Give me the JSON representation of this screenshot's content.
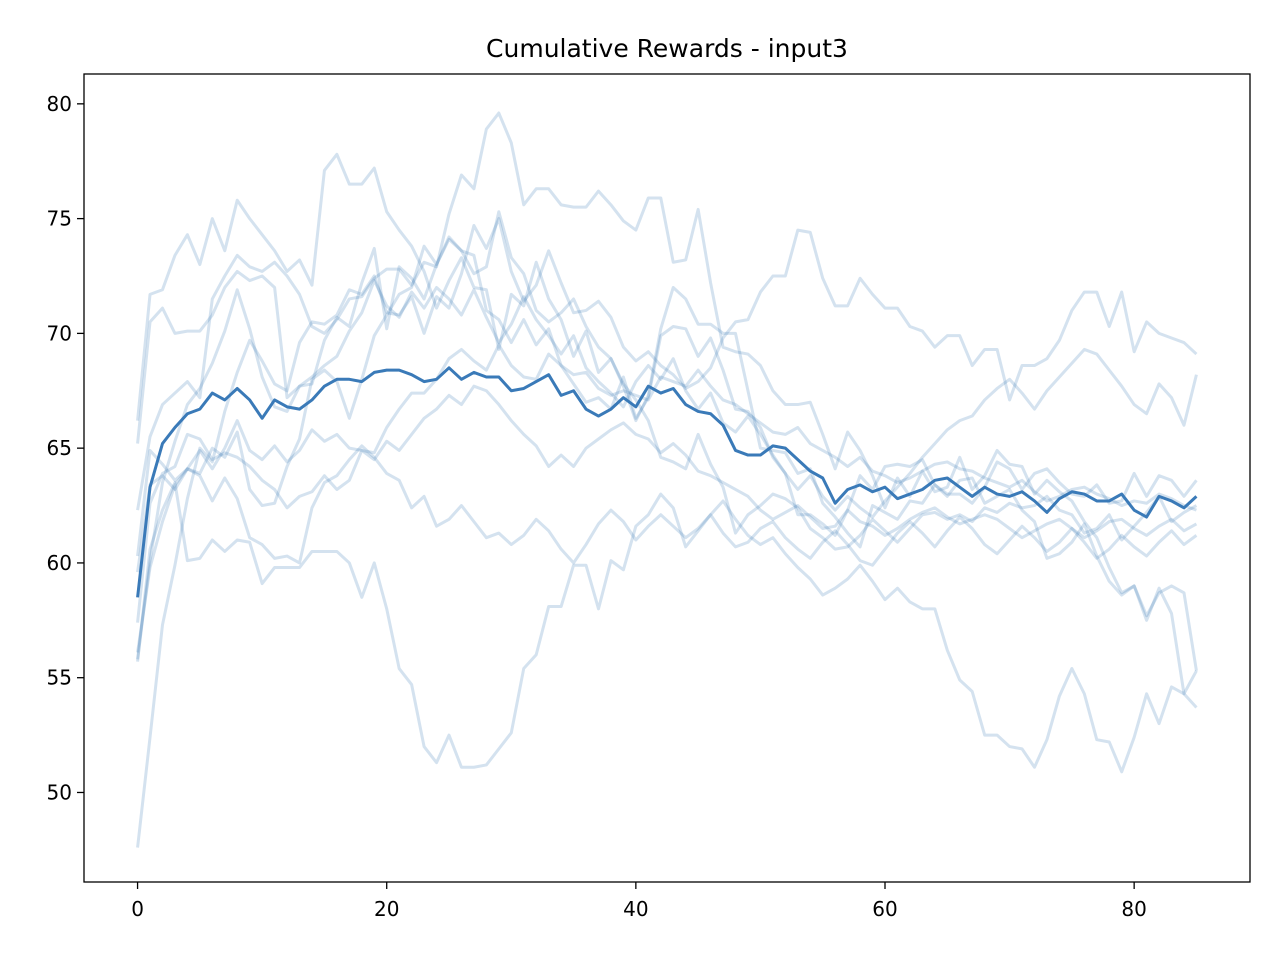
{
  "chart_data": {
    "type": "line",
    "title": "Cumulative Rewards - input3",
    "xlabel": "",
    "ylabel": "",
    "xlim": [
      -4.3,
      89.3
    ],
    "ylim": [
      46.1,
      81.3
    ],
    "xticks": [
      0,
      20,
      40,
      60,
      80
    ],
    "yticks": [
      50,
      55,
      60,
      65,
      70,
      75,
      80
    ],
    "grid": false,
    "legend": "none",
    "colors": {
      "mean": "#3a7ab8",
      "run": "#3a7ab8"
    },
    "run_opacity": 0.22,
    "mean": [
      58.5,
      63.3,
      65.2,
      65.9,
      66.5,
      66.7,
      67.4,
      67.1,
      67.6,
      67.1,
      66.3,
      67.1,
      66.8,
      66.7,
      67.1,
      67.7,
      68.0,
      68.0,
      67.9,
      68.3,
      68.4,
      68.4,
      68.2,
      67.9,
      68.0,
      68.5,
      68.0,
      68.3,
      68.1,
      68.1,
      67.5,
      67.6,
      67.9,
      68.2,
      67.3,
      67.5,
      66.7,
      66.4,
      66.7,
      67.2,
      66.8,
      67.7,
      67.4,
      67.6,
      66.9,
      66.6,
      66.5,
      66.0,
      64.9,
      64.7,
      64.7,
      65.1,
      65.0,
      64.5,
      64.0,
      63.7,
      62.6,
      63.2,
      63.4,
      63.1,
      63.3,
      62.8,
      63.0,
      63.2,
      63.6,
      63.7,
      63.3,
      62.9,
      63.3,
      63.0,
      62.9,
      63.1,
      62.7,
      62.2,
      62.8,
      63.1,
      63.0,
      62.7,
      62.7,
      63.0,
      62.3,
      62.0,
      62.9,
      62.7,
      62.4,
      62.9
    ],
    "series": [
      {
        "values": [
          66.2,
          71.7,
          71.9,
          73.4,
          74.3,
          73.0,
          75.0,
          73.6,
          75.8,
          75.0,
          74.3,
          73.6,
          72.7,
          73.2,
          72.1,
          77.1,
          77.8,
          76.5,
          76.5,
          77.2,
          75.3,
          74.5,
          73.8,
          72.7,
          71.1,
          72.3,
          73.3,
          72.0,
          71.9,
          69.3,
          71.7,
          71.2,
          73.1,
          71.5,
          70.6,
          69.0,
          70.1,
          68.3,
          68.9,
          67.7,
          66.2,
          67.3,
          70.2,
          72.0,
          71.5,
          70.4,
          70.4,
          70.0,
          70.0,
          67.5,
          65.0,
          64.9,
          64.8,
          63.9,
          64.1,
          62.6,
          62.0,
          61.3,
          60.7,
          62.5,
          62.2,
          61.9,
          62.7,
          62.6,
          63.4,
          62.9,
          63.6,
          63.7,
          62.6,
          62.9,
          63.2,
          62.3,
          61.8,
          60.2,
          60.4,
          60.9,
          61.7,
          60.3,
          59.2,
          58.6,
          59.0,
          57.5,
          58.9,
          57.8,
          54.3,
          53.7
        ]
      },
      {
        "values": [
          65.2,
          70.5,
          71.1,
          70.0,
          70.1,
          70.1,
          70.8,
          72.0,
          72.7,
          72.3,
          72.5,
          72.0,
          67.2,
          67.7,
          67.8,
          69.7,
          70.7,
          70.3,
          72.2,
          73.7,
          70.2,
          72.9,
          72.4,
          71.5,
          73.0,
          74.2,
          73.6,
          72.6,
          72.9,
          75.3,
          73.3,
          72.6,
          71.0,
          70.5,
          70.9,
          71.5,
          70.3,
          69.4,
          68.9,
          67.8,
          67.1,
          66.2,
          64.6,
          64.4,
          64.1,
          65.6,
          64.3,
          63.3,
          61.3,
          62.1,
          62.5,
          63.0,
          62.8,
          62.4,
          61.5,
          61.1,
          60.6,
          60.7,
          61.2,
          61.9,
          61.4,
          60.9,
          61.5,
          62.1,
          62.2,
          61.9,
          62.1,
          61.8,
          62.4,
          62.2,
          62.6,
          62.4,
          62.5,
          62.9,
          62.3,
          62.1,
          61.3,
          61.5,
          62.1,
          61.0,
          61.6,
          62.2,
          62.9,
          61.8,
          62.2,
          62.5
        ]
      },
      {
        "values": [
          62.3,
          65.5,
          66.9,
          67.4,
          67.9,
          67.2,
          71.5,
          72.5,
          73.4,
          72.9,
          72.7,
          73.1,
          72.5,
          71.7,
          70.3,
          70.0,
          70.6,
          71.5,
          71.6,
          72.4,
          72.8,
          72.8,
          72.1,
          73.1,
          72.9,
          75.2,
          76.9,
          76.3,
          78.9,
          79.6,
          78.3,
          75.6,
          76.3,
          76.3,
          75.6,
          75.5,
          75.5,
          76.2,
          75.6,
          74.9,
          74.5,
          75.9,
          75.9,
          73.1,
          73.2,
          75.4,
          72.2,
          69.4,
          69.2,
          69.1,
          68.6,
          67.5,
          66.9,
          66.9,
          67.0,
          65.6,
          64.1,
          65.7,
          64.9,
          63.8,
          62.4,
          63.7,
          62.9,
          64.0,
          63.1,
          63.3,
          64.6,
          63.2,
          63.8,
          64.9,
          64.3,
          64.2,
          63.0,
          63.6,
          63.1,
          62.7,
          61.8,
          61.1,
          59.8,
          58.7,
          59.0,
          57.7,
          58.7,
          59.0,
          58.7,
          55.3
        ]
      },
      {
        "values": [
          60.3,
          64.9,
          64.3,
          63.6,
          64.1,
          63.9,
          65.0,
          64.6,
          65.7,
          63.2,
          62.5,
          62.6,
          64.2,
          65.4,
          68.0,
          68.4,
          67.9,
          66.3,
          68.0,
          69.9,
          70.8,
          71.7,
          72.0,
          73.8,
          73.0,
          74.1,
          73.6,
          73.4,
          71.0,
          70.6,
          69.6,
          70.6,
          69.5,
          70.2,
          68.6,
          67.8,
          67.0,
          67.2,
          66.7,
          68.1,
          66.3,
          67.2,
          69.9,
          70.3,
          70.2,
          69.0,
          69.8,
          68.4,
          66.7,
          66.6,
          65.9,
          64.6,
          63.9,
          62.1,
          62.1,
          61.7,
          61.2,
          62.3,
          63.8,
          63.2,
          64.2,
          64.3,
          64.2,
          64.5,
          63.4,
          63.0,
          63.0,
          62.6,
          63.3,
          64.4,
          64.1,
          63.2,
          63.9,
          64.1,
          63.5,
          63.0,
          62.9,
          63.4,
          62.6,
          62.7,
          63.9,
          62.9,
          63.8,
          63.6,
          62.9,
          63.6
        ]
      },
      {
        "values": [
          59.6,
          63.4,
          63.8,
          63.2,
          64.1,
          64.9,
          64.1,
          65.0,
          66.2,
          64.9,
          64.5,
          65.1,
          64.4,
          64.9,
          65.8,
          65.3,
          65.6,
          65.0,
          64.9,
          64.8,
          65.9,
          66.7,
          67.4,
          67.4,
          68.0,
          68.9,
          69.3,
          68.8,
          68.4,
          69.5,
          68.6,
          68.1,
          68.0,
          69.1,
          68.6,
          68.2,
          68.3,
          67.6,
          67.3,
          67.5,
          67.3,
          67.1,
          68.1,
          67.9,
          67.7,
          68.4,
          67.7,
          67.1,
          66.9,
          66.5,
          66.1,
          65.7,
          65.6,
          65.9,
          65.2,
          64.9,
          64.6,
          64.2,
          64.6,
          64.0,
          63.8,
          63.5,
          63.7,
          64.0,
          64.3,
          64.4,
          64.1,
          64.0,
          63.7,
          63.5,
          63.3,
          63.6,
          63.1,
          62.7,
          62.9,
          63.2,
          63.3,
          63.0,
          62.8,
          62.5,
          62.7,
          62.6,
          63.0,
          62.8,
          62.5,
          62.3
        ]
      },
      {
        "values": [
          57.4,
          62.6,
          63.9,
          64.2,
          65.6,
          65.4,
          64.5,
          64.8,
          64.6,
          64.2,
          63.6,
          63.2,
          62.4,
          62.9,
          63.1,
          63.8,
          63.2,
          63.6,
          64.9,
          64.5,
          65.3,
          64.9,
          65.6,
          66.3,
          66.7,
          67.3,
          66.9,
          67.7,
          67.5,
          66.9,
          66.2,
          65.6,
          65.1,
          64.2,
          64.7,
          64.2,
          65.0,
          65.4,
          65.8,
          66.1,
          65.6,
          65.4,
          64.8,
          65.2,
          64.7,
          64.0,
          63.8,
          63.5,
          63.2,
          62.9,
          62.3,
          61.9,
          62.2,
          62.5,
          62.0,
          61.5,
          61.6,
          62.3,
          61.8,
          61.6,
          61.2,
          61.5,
          61.9,
          62.2,
          62.4,
          62.0,
          61.7,
          61.9,
          62.1,
          61.9,
          61.5,
          61.1,
          61.4,
          61.7,
          61.9,
          61.5,
          61.1,
          61.4,
          61.8,
          61.9,
          61.5,
          61.2,
          61.6,
          61.9,
          61.4,
          61.7
        ]
      },
      {
        "values": [
          56.1,
          59.8,
          61.8,
          63.4,
          64.1,
          63.8,
          62.7,
          63.7,
          62.8,
          61.1,
          60.8,
          60.2,
          60.3,
          60.0,
          62.4,
          63.5,
          63.8,
          64.5,
          65.1,
          64.6,
          63.9,
          63.6,
          62.4,
          62.9,
          61.6,
          61.9,
          62.5,
          61.8,
          61.1,
          61.3,
          60.8,
          61.2,
          61.9,
          61.4,
          60.6,
          60.0,
          60.8,
          61.7,
          62.3,
          61.8,
          61.0,
          61.6,
          62.1,
          61.6,
          61.1,
          61.5,
          62.1,
          61.3,
          60.7,
          60.9,
          61.5,
          61.8,
          61.1,
          60.6,
          60.2,
          60.9,
          61.4,
          60.8,
          60.1,
          59.9,
          60.6,
          61.3,
          61.8,
          61.3,
          60.7,
          61.4,
          62.0,
          61.5,
          60.8,
          60.4,
          61.0,
          61.6,
          61.1,
          60.5,
          60.9,
          61.5,
          60.9,
          60.2,
          60.6,
          61.2,
          60.7,
          60.3,
          60.9,
          61.4,
          60.8,
          61.2
        ]
      },
      {
        "values": [
          55.7,
          60.6,
          62.3,
          63.5,
          60.1,
          60.2,
          61.0,
          60.5,
          61.0,
          60.9,
          59.1,
          59.8,
          59.8,
          59.8,
          60.5,
          60.5,
          60.5,
          60.0,
          58.5,
          60.0,
          58.0,
          55.4,
          54.7,
          52.0,
          51.3,
          52.5,
          51.1,
          51.1,
          51.2,
          51.9,
          52.6,
          55.4,
          56.0,
          58.1,
          58.1,
          59.9,
          59.9,
          58.0,
          60.1,
          59.7,
          61.6,
          62.1,
          63.0,
          62.4,
          60.7,
          61.4,
          62.1,
          62.7,
          61.9,
          61.2,
          60.8,
          61.1,
          60.4,
          59.8,
          59.3,
          58.6,
          58.9,
          59.3,
          59.9,
          59.2,
          58.4,
          58.9,
          58.3,
          58.0,
          58.0,
          56.2,
          54.9,
          54.4,
          52.5,
          52.5,
          52.0,
          51.9,
          51.1,
          52.3,
          54.2,
          55.4,
          54.3,
          52.3,
          52.2,
          50.9,
          52.4,
          54.3,
          53.0,
          54.6,
          54.3,
          55.3
        ]
      },
      {
        "values": [
          47.6,
          52.4,
          57.3,
          59.9,
          62.8,
          65.0,
          64.4,
          66.6,
          68.3,
          69.7,
          68.8,
          67.8,
          67.5,
          69.6,
          70.5,
          70.4,
          70.8,
          71.9,
          71.7,
          72.5,
          70.9,
          70.8,
          71.6,
          70.0,
          71.6,
          71.1,
          72.6,
          74.7,
          73.7,
          75.0,
          72.7,
          71.4,
          72.1,
          73.6,
          72.2,
          70.9,
          71.0,
          71.4,
          70.7,
          69.4,
          68.8,
          69.2,
          68.6,
          68.2,
          67.6,
          67.9,
          68.5,
          69.8,
          70.5,
          70.6,
          71.8,
          72.5,
          72.5,
          74.5,
          74.4,
          72.4,
          71.2,
          71.2,
          72.4,
          71.7,
          71.1,
          71.1,
          70.3,
          70.1,
          69.4,
          69.9,
          69.9,
          68.6,
          69.3,
          69.3,
          67.1,
          68.6,
          68.6,
          68.9,
          69.7,
          71.0,
          71.8,
          71.8,
          70.3,
          71.8,
          69.2,
          70.5,
          70.0,
          69.8,
          69.6,
          69.1
        ]
      },
      {
        "values": [
          55.8,
          60.1,
          63.5,
          65.3,
          66.9,
          67.6,
          68.7,
          70.1,
          71.9,
          70.2,
          68.1,
          66.8,
          66.6,
          67.7,
          68.1,
          68.6,
          69.0,
          70.1,
          70.9,
          72.3,
          71.2,
          70.7,
          71.8,
          71.1,
          72.0,
          71.5,
          70.8,
          71.9,
          70.7,
          69.6,
          70.4,
          71.6,
          70.6,
          69.9,
          69.1,
          69.9,
          68.5,
          67.9,
          67.4,
          66.8,
          67.9,
          68.6,
          68.0,
          68.9,
          67.5,
          66.7,
          67.4,
          66.1,
          65.7,
          66.4,
          65.6,
          64.7,
          63.9,
          63.2,
          63.8,
          62.9,
          62.3,
          62.9,
          62.4,
          62.0,
          62.7,
          63.3,
          63.9,
          64.6,
          65.2,
          65.8,
          66.2,
          66.4,
          67.1,
          67.6,
          68.0,
          67.4,
          66.7,
          67.5,
          68.1,
          68.7,
          69.3,
          69.1,
          68.4,
          67.7,
          66.9,
          66.5,
          67.8,
          67.2,
          66.0,
          68.2
        ]
      }
    ]
  }
}
